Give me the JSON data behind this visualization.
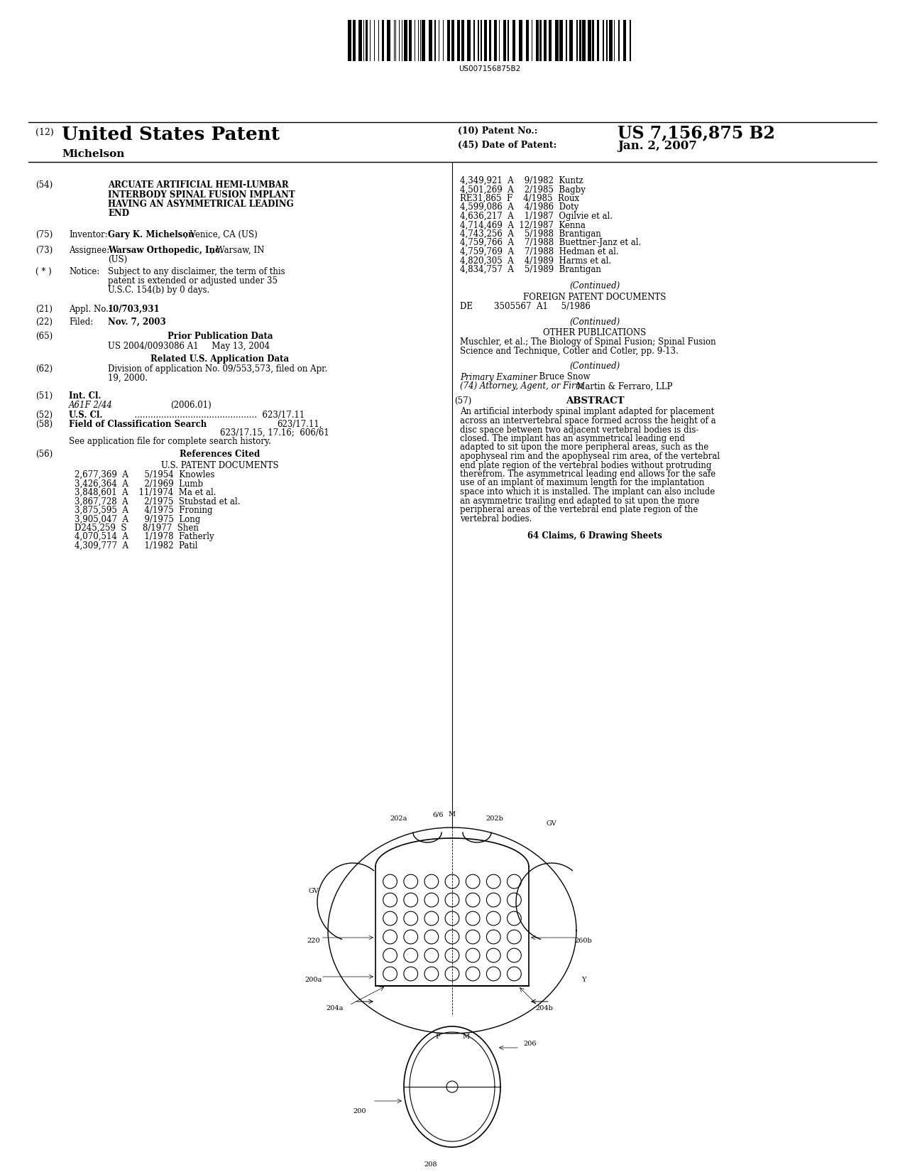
{
  "background_color": "#ffffff",
  "barcode_text": "US007156875B2",
  "patent_number": "US 7,156,875 B2",
  "patent_date": "Jan. 2, 2007",
  "patent_type": "United States Patent",
  "inventor_name": "Michelson",
  "title_text_lines": [
    "ARCUATE ARTIFICIAL HEMI-LUMBAR",
    "INTERBODY SPINAL FUSION IMPLANT",
    "HAVING AN ASYMMETRICAL LEADING",
    "END"
  ],
  "inventor_bold": "Gary K. Michelson",
  "inventor_rest": ", Venice, CA (US)",
  "assignee_bold": "Warsaw Orthopedic, Inc.",
  "assignee_rest": ", Warsaw, IN",
  "assignee_rest2": "(US)",
  "notice_lines": [
    "Subject to any disclaimer, the term of this",
    "patent is extended or adjusted under 35",
    "U.S.C. 154(b) by 0 days."
  ],
  "appl_no": "10/703,931",
  "filed_date": "Nov. 7, 2003",
  "prior_pub": "US 2004/0093086 A1     May 13, 2004",
  "div_lines": [
    "Division of application No. 09/553,573, filed on Apr.",
    "19, 2000."
  ],
  "intcl_italic": "A61F 2/44",
  "intcl_year": "(2006.01)",
  "fcs_right1": "623/17.11,",
  "fcs_right2": "623/17.15, 17.16;  606/61",
  "us_patents": [
    "2,677,369  A      5/1954  Knowles",
    "3,426,364  A      2/1969  Lumb",
    "3,848,601  A    11/1974  Ma et al.",
    "3,867,728  A      2/1975  Stubstad et al.",
    "3,875,595  A      4/1975  Froning",
    "3,905,047  A      9/1975  Long",
    "D245,259  S      8/1977  Shen",
    "4,070,514  A      1/1978  Fatherly",
    "4,309,777  A      1/1982  Patil"
  ],
  "right_patents": [
    "4,349,921  A    9/1982  Kuntz",
    "4,501,269  A    2/1985  Bagby",
    "RE31,865  F    4/1985  Roux",
    "4,599,086  A    4/1986  Doty",
    "4,636,217  A    1/1987  Ogilvie et al.",
    "4,714,469  A  12/1987  Kenna",
    "4,743,256  A    5/1988  Brantigan",
    "4,759,766  A    7/1988  Buettner-Janz et al.",
    "4,759,769  A    7/1988  Hedman et al.",
    "4,820,305  A    4/1989  Harms et al.",
    "4,834,757  A    5/1989  Brantigan"
  ],
  "foreign_patents": [
    "DE        3505567  A1     5/1986"
  ],
  "other_pub_lines": [
    "Muschler, et al.; The Biology of Spinal Fusion; Spinal Fusion",
    "Science and Technique, Cotler and Cotler, pp. 9-13."
  ],
  "primary_examiner_italic": "Primary Examiner",
  "primary_examiner_name": "  Bruce Snow",
  "attorney_italic": "(74) Attorney, Agent, or Firm",
  "attorney_name": "   Martin & Ferraro, LLP",
  "abstract_text_lines": [
    "An artificial interbody spinal implant adapted for placement",
    "across an intervertebral space formed across the height of a",
    "disc space between two adjacent vertebral bodies is dis-",
    "closed. The implant has an asymmetrical leading end",
    "adapted to sit upon the more peripheral areas, such as the",
    "apophyseal rim and the apophyseal rim area, of the vertebral",
    "end plate region of the vertebral bodies without protruding",
    "therefrom. The asymmetrical leading end allows for the safe",
    "use of an implant of maximum length for the implantation",
    "space into which it is installed. The implant can also include",
    "an asymmetric trailing end adapted to sit upon the more",
    "peripheral areas of the vertebral end plate region of the",
    "vertebral bodies."
  ],
  "claims_text": "64 Claims, 6 Drawing Sheets"
}
